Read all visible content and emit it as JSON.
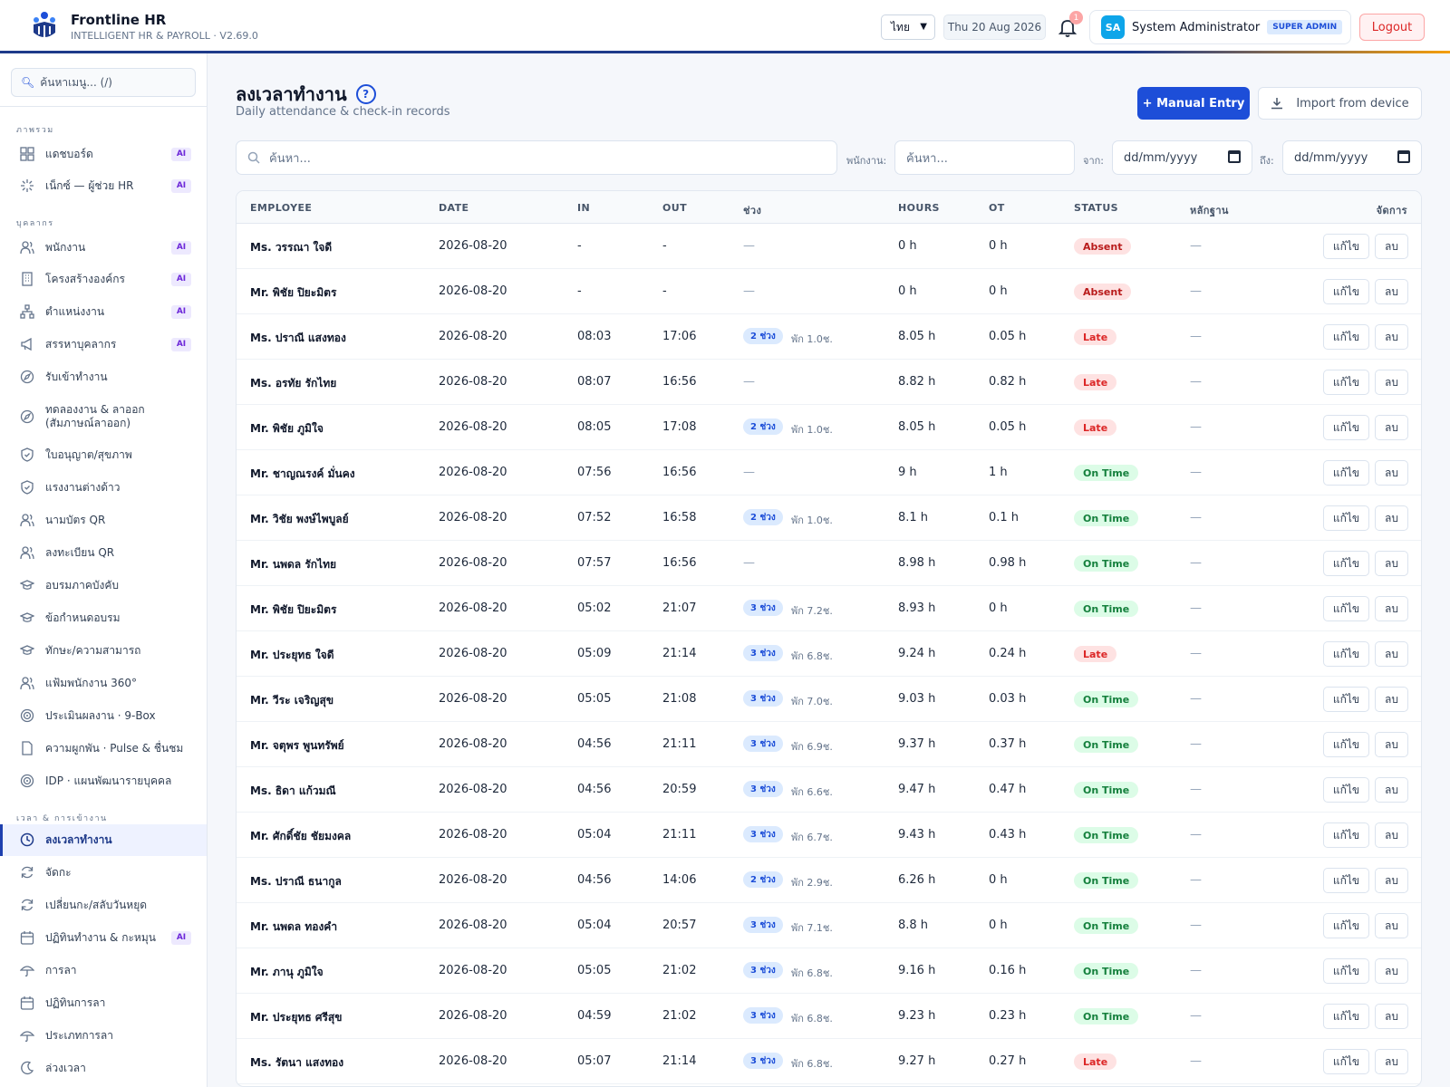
{
  "app": {
    "name": "Frontline HR",
    "subtitle": "INTELLIGENT HR & PAYROLL · V2.69.0",
    "language": "ไทย",
    "date": "Thu 20 Aug 2026",
    "notifications": "1",
    "user_initials": "SA",
    "user_name": "System Administrator",
    "user_role": "SUPER ADMIN",
    "logout_label": "Logout"
  },
  "sidebar": {
    "search_placeholder": "ค้นหาเมนู... (/)",
    "sections": [
      "ภาพรวม",
      "บุคลากร",
      "เวลา & การเข้างาน"
    ],
    "items": [
      {
        "label": "แดชบอร์ด",
        "ai": "AI",
        "icon": "grid-icon"
      },
      {
        "label": "เน็กซ์ — ผู้ช่วย HR",
        "ai": "AI",
        "icon": "sparkle-icon"
      },
      {
        "label": "พนักงาน",
        "ai": "AI",
        "icon": "users-icon"
      },
      {
        "label": "โครงสร้างองค์กร",
        "ai": "AI",
        "icon": "building-icon"
      },
      {
        "label": "ตำแหน่งงาน",
        "ai": "AI",
        "icon": "hierarchy-icon"
      },
      {
        "label": "สรรหาบุคลากร",
        "ai": "AI",
        "icon": "megaphone-icon"
      },
      {
        "label": "รับเข้าทำงาน",
        "ai": "",
        "icon": "compass-icon"
      },
      {
        "label": "ทดลองงาน & ลาออก",
        "label2": "(สัมภาษณ์ลาออก)",
        "ai": "",
        "icon": "compass-icon"
      },
      {
        "label": "ใบอนุญาต/สุขภาพ",
        "ai": "",
        "icon": "shield-icon"
      },
      {
        "label": "แรงงานต่างด้าว",
        "ai": "",
        "icon": "shield-icon"
      },
      {
        "label": "นามบัตร QR",
        "ai": "",
        "icon": "users-icon"
      },
      {
        "label": "ลงทะเบียน QR",
        "ai": "",
        "icon": "users-icon"
      },
      {
        "label": "อบรมภาคบังคับ",
        "ai": "",
        "icon": "graduation-icon"
      },
      {
        "label": "ข้อกำหนดอบรม",
        "ai": "",
        "icon": "graduation-icon"
      },
      {
        "label": "ทักษะ/ความสามารถ",
        "ai": "",
        "icon": "graduation-icon"
      },
      {
        "label": "แฟ้มพนักงาน 360°",
        "ai": "",
        "icon": "users-icon"
      },
      {
        "label": "ประเมินผลงาน · 9-Box",
        "ai": "",
        "icon": "target-icon"
      },
      {
        "label": "ความผูกพัน · Pulse & ชื่นชม",
        "ai": "",
        "icon": "document-icon"
      },
      {
        "label": "IDP · แผนพัฒนารายบุคคล",
        "ai": "",
        "icon": "target-icon"
      },
      {
        "label": "ลงเวลาทำงาน",
        "ai": "",
        "icon": "clock-icon"
      },
      {
        "label": "จัดกะ",
        "ai": "",
        "icon": "refresh-icon"
      },
      {
        "label": "เปลี่ยนกะ/สลับวันหยุด",
        "ai": "",
        "icon": "refresh-icon"
      },
      {
        "label": "ปฏิทินทำงาน & กะหมุน",
        "ai": "AI",
        "icon": "calendar-icon"
      },
      {
        "label": "การลา",
        "ai": "",
        "icon": "umbrella-icon"
      },
      {
        "label": "ปฏิทินการลา",
        "ai": "",
        "icon": "calendar-icon"
      },
      {
        "label": "ประเภทการลา",
        "ai": "",
        "icon": "umbrella-icon"
      },
      {
        "label": "ล่วงเวลา",
        "ai": "",
        "icon": "moon-icon"
      }
    ]
  },
  "main": {
    "title": "ลงเวลาทำงาน",
    "help": "?",
    "subtitle": "Daily attendance & check-in records",
    "manual_entry_label": "+ Manual Entry",
    "import_label": "Import from device",
    "search_placeholder": "ค้นหา...",
    "employee_label": "พนักงาน:",
    "employee_placeholder": "ค้นหา...",
    "from_label": "จาก:",
    "to_label": "ถึง:",
    "date_placeholder": "dd/mm/yyyy"
  },
  "table": {
    "headers": [
      "EMPLOYEE",
      "DATE",
      "IN",
      "OUT",
      "ช่วง",
      "HOURS",
      "OT",
      "STATUS",
      "หลักฐาน",
      "จัดการ"
    ],
    "edit_label": "แก้ไข",
    "delete_label": "ลบ",
    "status_colors": {
      "Absent": "#b91c1c",
      "Late": "#dc2626",
      "On Time": "#15803d"
    },
    "rows": [
      {
        "employee": "Ms. วรรณา ใจดี",
        "date": "2026-08-20",
        "in": "-",
        "out": "-",
        "seg": "",
        "brk": "—",
        "hours": "0 h",
        "ot": "0 h",
        "status": "Absent",
        "evidence": "—"
      },
      {
        "employee": "Mr. พิชัย ปิยะมิตร",
        "date": "2026-08-20",
        "in": "-",
        "out": "-",
        "seg": "",
        "brk": "—",
        "hours": "0 h",
        "ot": "0 h",
        "status": "Absent",
        "evidence": "—"
      },
      {
        "employee": "Ms. ปราณี แสงทอง",
        "date": "2026-08-20",
        "in": "08:03",
        "out": "17:06",
        "seg": "2 ช่วง",
        "brk": "พัก 1.0ช.",
        "hours": "8.05 h",
        "ot": "0.05 h",
        "status": "Late",
        "evidence": "—"
      },
      {
        "employee": "Ms. อรทัย รักไทย",
        "date": "2026-08-20",
        "in": "08:07",
        "out": "16:56",
        "seg": "",
        "brk": "—",
        "hours": "8.82 h",
        "ot": "0.82 h",
        "status": "Late",
        "evidence": "—"
      },
      {
        "employee": "Mr. พิชัย ภูมิใจ",
        "date": "2026-08-20",
        "in": "08:05",
        "out": "17:08",
        "seg": "2 ช่วง",
        "brk": "พัก 1.0ช.",
        "hours": "8.05 h",
        "ot": "0.05 h",
        "status": "Late",
        "evidence": "—"
      },
      {
        "employee": "Mr. ชาญณรงค์ มั่นคง",
        "date": "2026-08-20",
        "in": "07:56",
        "out": "16:56",
        "seg": "",
        "brk": "—",
        "hours": "9 h",
        "ot": "1 h",
        "status": "On Time",
        "evidence": "—"
      },
      {
        "employee": "Mr. วิชัย พงษ์ไพบูลย์",
        "date": "2026-08-20",
        "in": "07:52",
        "out": "16:58",
        "seg": "2 ช่วง",
        "brk": "พัก 1.0ช.",
        "hours": "8.1 h",
        "ot": "0.1 h",
        "status": "On Time",
        "evidence": "—"
      },
      {
        "employee": "Mr. นพดล รักไทย",
        "date": "2026-08-20",
        "in": "07:57",
        "out": "16:56",
        "seg": "",
        "brk": "—",
        "hours": "8.98 h",
        "ot": "0.98 h",
        "status": "On Time",
        "evidence": "—"
      },
      {
        "employee": "Mr. พิชัย ปิยะมิตร",
        "date": "2026-08-20",
        "in": "05:02",
        "out": "21:07",
        "seg": "3 ช่วง",
        "brk": "พัก 7.2ช.",
        "hours": "8.93 h",
        "ot": "0 h",
        "status": "On Time",
        "evidence": "—"
      },
      {
        "employee": "Mr. ประยุทธ ใจดี",
        "date": "2026-08-20",
        "in": "05:09",
        "out": "21:14",
        "seg": "3 ช่วง",
        "brk": "พัก 6.8ช.",
        "hours": "9.24 h",
        "ot": "0.24 h",
        "status": "Late",
        "evidence": "—"
      },
      {
        "employee": "Mr. วีระ เจริญสุข",
        "date": "2026-08-20",
        "in": "05:05",
        "out": "21:08",
        "seg": "3 ช่วง",
        "brk": "พัก 7.0ช.",
        "hours": "9.03 h",
        "ot": "0.03 h",
        "status": "On Time",
        "evidence": "—"
      },
      {
        "employee": "Mr. จตุพร พูนทรัพย์",
        "date": "2026-08-20",
        "in": "04:56",
        "out": "21:11",
        "seg": "3 ช่วง",
        "brk": "พัก 6.9ช.",
        "hours": "9.37 h",
        "ot": "0.37 h",
        "status": "On Time",
        "evidence": "—"
      },
      {
        "employee": "Ms. ธิดา แก้วมณี",
        "date": "2026-08-20",
        "in": "04:56",
        "out": "20:59",
        "seg": "3 ช่วง",
        "brk": "พัก 6.6ช.",
        "hours": "9.47 h",
        "ot": "0.47 h",
        "status": "On Time",
        "evidence": "—"
      },
      {
        "employee": "Mr. ศักดิ์ชัย ชัยมงคล",
        "date": "2026-08-20",
        "in": "05:04",
        "out": "21:11",
        "seg": "3 ช่วง",
        "brk": "พัก 6.7ช.",
        "hours": "9.43 h",
        "ot": "0.43 h",
        "status": "On Time",
        "evidence": "—"
      },
      {
        "employee": "Ms. ปราณี ธนากูล",
        "date": "2026-08-20",
        "in": "04:56",
        "out": "14:06",
        "seg": "2 ช่วง",
        "brk": "พัก 2.9ช.",
        "hours": "6.26 h",
        "ot": "0 h",
        "status": "On Time",
        "evidence": "—"
      },
      {
        "employee": "Mr. นพดล ทองคำ",
        "date": "2026-08-20",
        "in": "05:04",
        "out": "20:57",
        "seg": "3 ช่วง",
        "brk": "พัก 7.1ช.",
        "hours": "8.8 h",
        "ot": "0 h",
        "status": "On Time",
        "evidence": "—"
      },
      {
        "employee": "Mr. ภานุ ภูมิใจ",
        "date": "2026-08-20",
        "in": "05:05",
        "out": "21:02",
        "seg": "3 ช่วง",
        "brk": "พัก 6.8ช.",
        "hours": "9.16 h",
        "ot": "0.16 h",
        "status": "On Time",
        "evidence": "—"
      },
      {
        "employee": "Mr. ประยุทธ ศรีสุข",
        "date": "2026-08-20",
        "in": "04:59",
        "out": "21:02",
        "seg": "3 ช่วง",
        "brk": "พัก 6.8ช.",
        "hours": "9.23 h",
        "ot": "0.23 h",
        "status": "On Time",
        "evidence": "—"
      },
      {
        "employee": "Ms. รัตนา แสงทอง",
        "date": "2026-08-20",
        "in": "05:07",
        "out": "21:14",
        "seg": "3 ช่วง",
        "brk": "พัก 6.8ช.",
        "hours": "9.27 h",
        "ot": "0.27 h",
        "status": "Late",
        "evidence": "—"
      }
    ]
  }
}
